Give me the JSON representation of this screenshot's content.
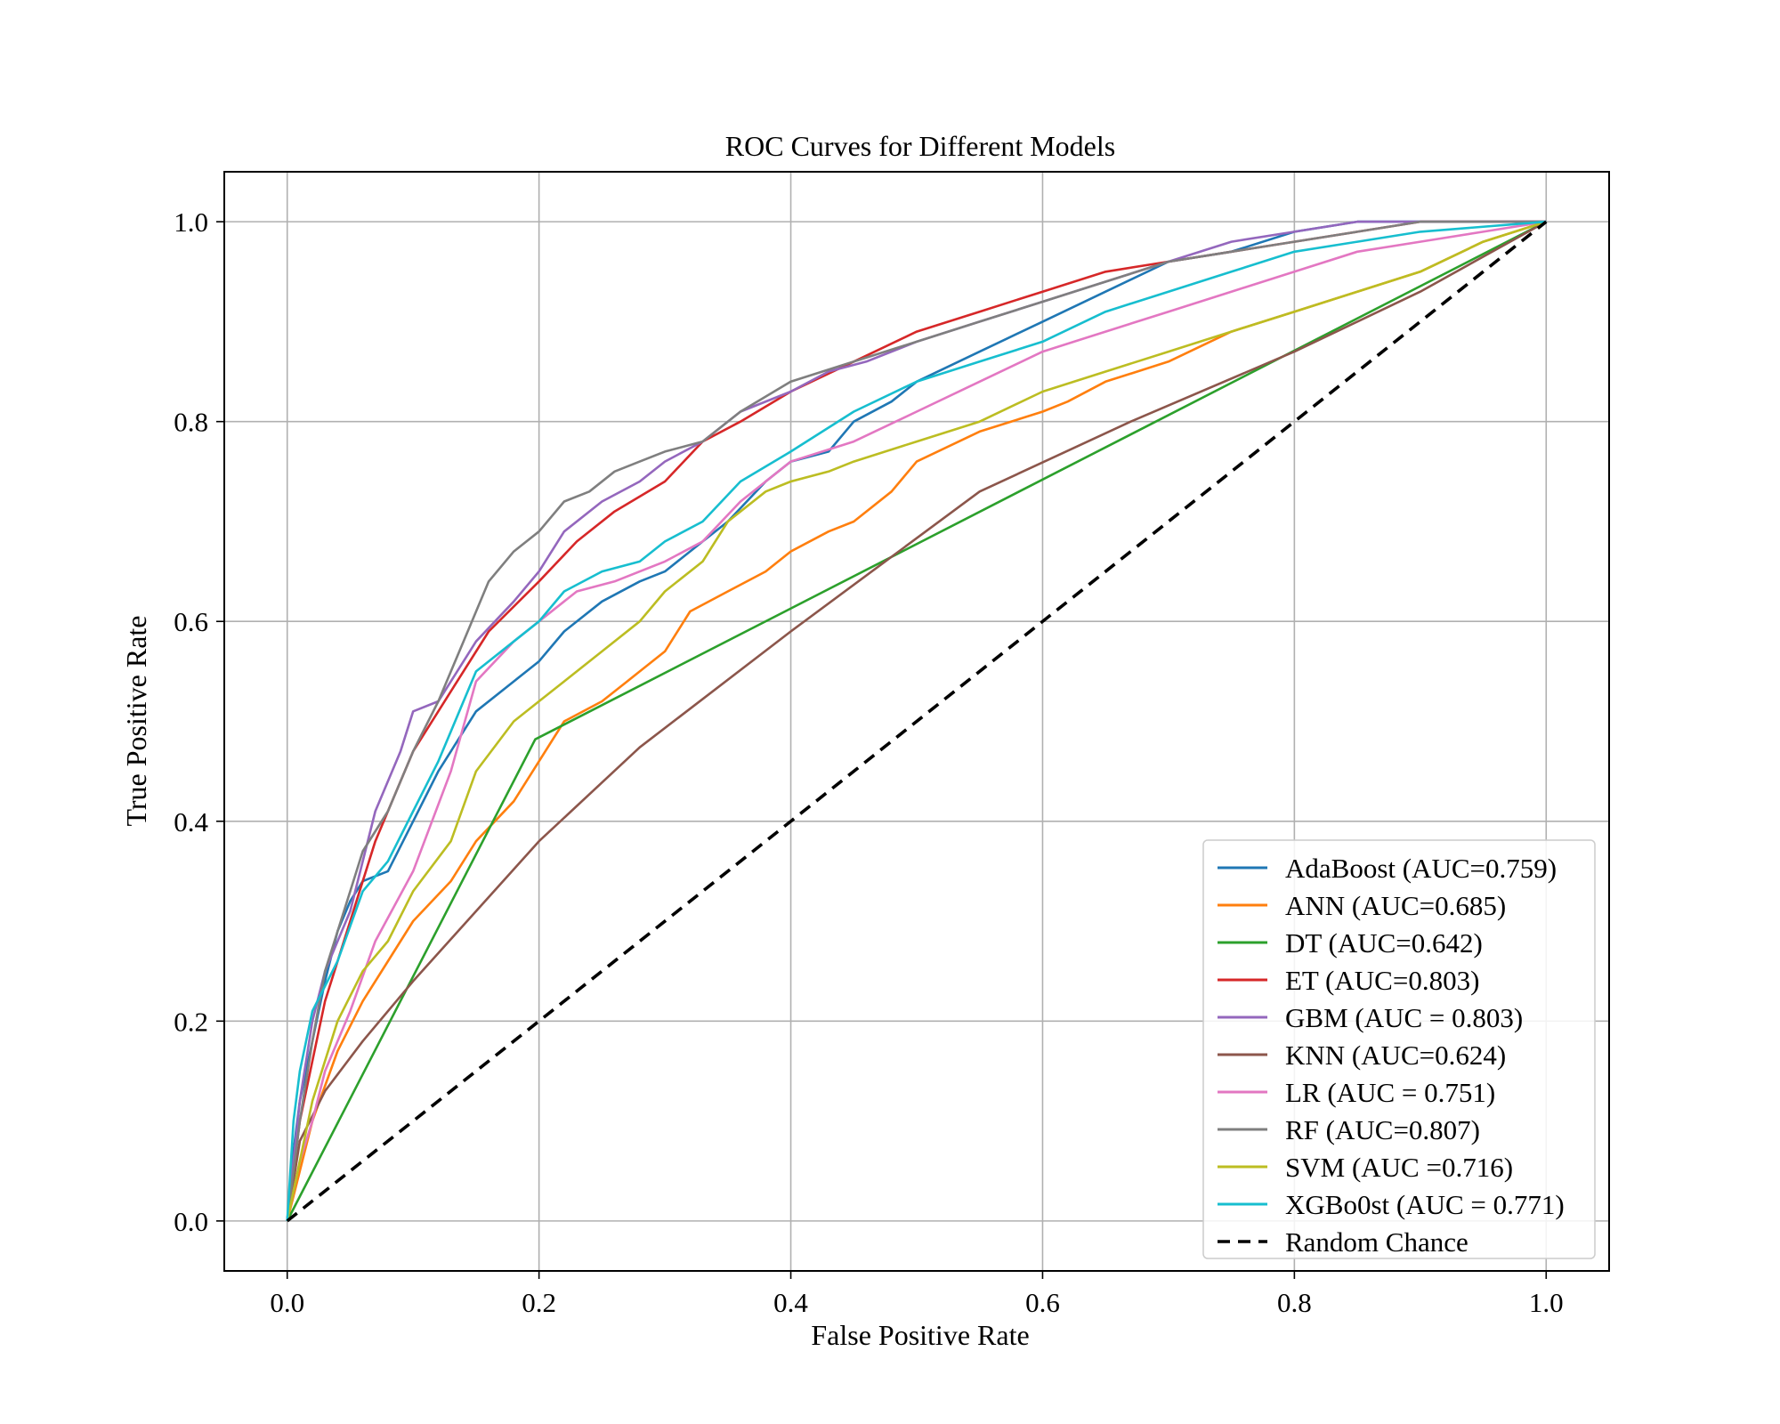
{
  "chart_data": {
    "type": "line",
    "title": "ROC Curves for Different Models",
    "xlabel": "False Positive Rate",
    "ylabel": "True Positive Rate",
    "xlim": [
      -0.05,
      1.05
    ],
    "ylim": [
      -0.05,
      1.05
    ],
    "grid": true,
    "legend_position": "bottom-right",
    "x_ticks": [
      {
        "value": 0.0,
        "label": "0.0"
      },
      {
        "value": 0.2,
        "label": "0.2"
      },
      {
        "value": 0.4,
        "label": "0.4"
      },
      {
        "value": 0.6,
        "label": "0.6"
      },
      {
        "value": 0.8,
        "label": "0.8"
      },
      {
        "value": 1.0,
        "label": "1.0"
      }
    ],
    "y_ticks": [
      {
        "value": 0.0,
        "label": "0.0"
      },
      {
        "value": 0.2,
        "label": "0.2"
      },
      {
        "value": 0.4,
        "label": "0.4"
      },
      {
        "value": 0.6,
        "label": "0.6"
      },
      {
        "value": 0.8,
        "label": "0.8"
      },
      {
        "value": 1.0,
        "label": "1.0"
      }
    ],
    "series": [
      {
        "name": "AdaBoost (AUC=0.759)",
        "color": "#1f77b4",
        "style": "solid",
        "x": [
          0,
          0.005,
          0.01,
          0.02,
          0.03,
          0.04,
          0.05,
          0.06,
          0.08,
          0.1,
          0.12,
          0.15,
          0.18,
          0.2,
          0.22,
          0.25,
          0.28,
          0.3,
          0.33,
          0.35,
          0.38,
          0.4,
          0.43,
          0.45,
          0.48,
          0.5,
          0.55,
          0.6,
          0.65,
          0.7,
          0.75,
          0.8,
          0.85,
          0.9,
          1.0
        ],
        "y": [
          0,
          0.07,
          0.12,
          0.18,
          0.24,
          0.29,
          0.32,
          0.34,
          0.35,
          0.4,
          0.45,
          0.51,
          0.54,
          0.56,
          0.59,
          0.62,
          0.64,
          0.65,
          0.68,
          0.7,
          0.74,
          0.76,
          0.77,
          0.8,
          0.82,
          0.84,
          0.87,
          0.9,
          0.93,
          0.96,
          0.97,
          0.99,
          1.0,
          1.0,
          1.0
        ]
      },
      {
        "name": "ANN (AUC=0.685)",
        "color": "#ff7f0e",
        "style": "solid",
        "x": [
          0,
          0.01,
          0.02,
          0.04,
          0.06,
          0.08,
          0.1,
          0.13,
          0.15,
          0.18,
          0.2,
          0.22,
          0.25,
          0.27,
          0.28,
          0.3,
          0.32,
          0.35,
          0.38,
          0.4,
          0.43,
          0.45,
          0.48,
          0.5,
          0.55,
          0.6,
          0.62,
          0.65,
          0.7,
          0.75,
          0.8,
          0.85,
          0.9,
          0.95,
          1.0
        ],
        "y": [
          0,
          0.05,
          0.1,
          0.17,
          0.22,
          0.26,
          0.3,
          0.34,
          0.38,
          0.42,
          0.46,
          0.5,
          0.52,
          0.54,
          0.55,
          0.57,
          0.61,
          0.63,
          0.65,
          0.67,
          0.69,
          0.7,
          0.73,
          0.76,
          0.79,
          0.81,
          0.82,
          0.84,
          0.86,
          0.89,
          0.91,
          0.93,
          0.95,
          0.98,
          1.0
        ]
      },
      {
        "name": "DT (AUC=0.642)",
        "color": "#2ca02c",
        "style": "solid",
        "x": [
          0,
          0.197,
          1.0
        ],
        "y": [
          0,
          0.482,
          1.0
        ]
      },
      {
        "name": "ET (AUC=0.803)",
        "color": "#d62728",
        "style": "solid",
        "x": [
          0,
          0.01,
          0.02,
          0.03,
          0.05,
          0.07,
          0.1,
          0.13,
          0.16,
          0.2,
          0.23,
          0.26,
          0.3,
          0.33,
          0.36,
          0.4,
          0.45,
          0.5,
          0.55,
          0.6,
          0.65,
          0.7,
          0.75,
          0.8,
          0.85,
          0.9,
          1.0
        ],
        "y": [
          0,
          0.1,
          0.16,
          0.22,
          0.3,
          0.38,
          0.47,
          0.53,
          0.59,
          0.64,
          0.68,
          0.71,
          0.74,
          0.78,
          0.8,
          0.83,
          0.86,
          0.89,
          0.91,
          0.93,
          0.95,
          0.96,
          0.97,
          0.98,
          0.99,
          1.0,
          1.0
        ]
      },
      {
        "name": "GBM (AUC = 0.803)",
        "color": "#9467bd",
        "style": "solid",
        "x": [
          0,
          0.01,
          0.02,
          0.03,
          0.05,
          0.07,
          0.09,
          0.1,
          0.12,
          0.15,
          0.18,
          0.2,
          0.22,
          0.25,
          0.28,
          0.3,
          0.33,
          0.36,
          0.4,
          0.43,
          0.46,
          0.5,
          0.55,
          0.6,
          0.65,
          0.7,
          0.75,
          0.8,
          0.85,
          0.9,
          1.0
        ],
        "y": [
          0,
          0.12,
          0.2,
          0.25,
          0.31,
          0.41,
          0.47,
          0.51,
          0.52,
          0.58,
          0.62,
          0.65,
          0.69,
          0.72,
          0.74,
          0.76,
          0.78,
          0.81,
          0.83,
          0.85,
          0.86,
          0.88,
          0.9,
          0.92,
          0.94,
          0.96,
          0.98,
          0.99,
          1.0,
          1.0,
          1.0
        ]
      },
      {
        "name": "KNN (AUC=0.624)",
        "color": "#8c564b",
        "style": "solid",
        "x": [
          0,
          0.01,
          0.03,
          0.06,
          0.1,
          0.2,
          0.28,
          0.4,
          0.55,
          0.67,
          0.8,
          0.9,
          1.0
        ],
        "y": [
          0,
          0.08,
          0.13,
          0.18,
          0.24,
          0.38,
          0.474,
          0.59,
          0.73,
          0.8,
          0.87,
          0.93,
          1.0
        ]
      },
      {
        "name": "LR (AUC = 0.751)",
        "color": "#e377c2",
        "style": "solid",
        "x": [
          0,
          0.01,
          0.02,
          0.03,
          0.05,
          0.07,
          0.1,
          0.13,
          0.15,
          0.18,
          0.2,
          0.23,
          0.26,
          0.3,
          0.33,
          0.36,
          0.4,
          0.45,
          0.5,
          0.55,
          0.6,
          0.65,
          0.7,
          0.75,
          0.8,
          0.85,
          0.9,
          0.95,
          1.0
        ],
        "y": [
          0,
          0.06,
          0.1,
          0.15,
          0.21,
          0.28,
          0.35,
          0.45,
          0.54,
          0.58,
          0.6,
          0.63,
          0.64,
          0.66,
          0.68,
          0.72,
          0.76,
          0.78,
          0.81,
          0.84,
          0.87,
          0.89,
          0.91,
          0.93,
          0.95,
          0.97,
          0.98,
          0.99,
          1.0
        ]
      },
      {
        "name": "RF (AUC=0.807)",
        "color": "#7f7f7f",
        "style": "solid",
        "x": [
          0,
          0.01,
          0.02,
          0.03,
          0.05,
          0.06,
          0.08,
          0.1,
          0.12,
          0.14,
          0.16,
          0.18,
          0.2,
          0.22,
          0.24,
          0.26,
          0.28,
          0.3,
          0.33,
          0.36,
          0.4,
          0.45,
          0.5,
          0.55,
          0.6,
          0.65,
          0.7,
          0.75,
          0.8,
          0.85,
          0.9,
          1.0
        ],
        "y": [
          0,
          0.1,
          0.18,
          0.25,
          0.33,
          0.37,
          0.41,
          0.47,
          0.52,
          0.58,
          0.64,
          0.67,
          0.69,
          0.72,
          0.73,
          0.75,
          0.76,
          0.77,
          0.78,
          0.81,
          0.84,
          0.86,
          0.88,
          0.9,
          0.92,
          0.94,
          0.96,
          0.97,
          0.98,
          0.99,
          1.0,
          1.0
        ]
      },
      {
        "name": "SVM (AUC =0.716)",
        "color": "#bcbd22",
        "style": "solid",
        "x": [
          0,
          0.01,
          0.02,
          0.04,
          0.06,
          0.08,
          0.1,
          0.13,
          0.15,
          0.18,
          0.2,
          0.22,
          0.25,
          0.28,
          0.3,
          0.33,
          0.35,
          0.38,
          0.4,
          0.43,
          0.45,
          0.5,
          0.55,
          0.6,
          0.65,
          0.7,
          0.75,
          0.8,
          0.85,
          0.9,
          0.95,
          1.0
        ],
        "y": [
          0,
          0.06,
          0.12,
          0.2,
          0.25,
          0.28,
          0.33,
          0.38,
          0.45,
          0.5,
          0.52,
          0.54,
          0.57,
          0.6,
          0.63,
          0.66,
          0.7,
          0.73,
          0.74,
          0.75,
          0.76,
          0.78,
          0.8,
          0.83,
          0.85,
          0.87,
          0.89,
          0.91,
          0.93,
          0.95,
          0.98,
          1.0
        ]
      },
      {
        "name": "XGBo0st (AUC = 0.771)",
        "color": "#17becf",
        "style": "solid",
        "x": [
          0,
          0.005,
          0.01,
          0.02,
          0.04,
          0.06,
          0.08,
          0.1,
          0.12,
          0.15,
          0.18,
          0.2,
          0.22,
          0.25,
          0.28,
          0.3,
          0.33,
          0.36,
          0.4,
          0.45,
          0.5,
          0.55,
          0.6,
          0.65,
          0.7,
          0.75,
          0.8,
          0.85,
          0.9,
          1.0
        ],
        "y": [
          0,
          0.1,
          0.15,
          0.21,
          0.26,
          0.33,
          0.36,
          0.41,
          0.46,
          0.55,
          0.58,
          0.6,
          0.63,
          0.65,
          0.66,
          0.68,
          0.7,
          0.74,
          0.77,
          0.81,
          0.84,
          0.86,
          0.88,
          0.91,
          0.93,
          0.95,
          0.97,
          0.98,
          0.99,
          1.0
        ]
      },
      {
        "name": "Random Chance",
        "color": "#000000",
        "style": "dashed",
        "x": [
          0,
          1.0
        ],
        "y": [
          0,
          1.0
        ]
      }
    ]
  }
}
